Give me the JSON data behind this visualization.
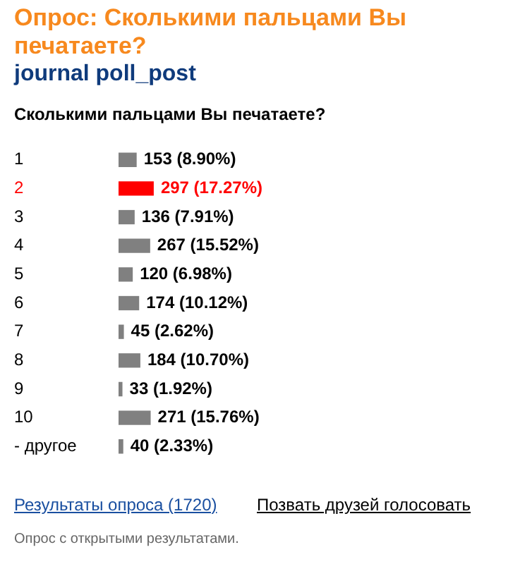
{
  "chart_data": {
    "type": "bar",
    "orientation": "horizontal",
    "title": "Опрос: Сколькими пальцами Вы печатаете?",
    "subtitle": "journal poll_post",
    "categories": [
      "1",
      "2",
      "3",
      "4",
      "5",
      "6",
      "7",
      "8",
      "9",
      "10",
      "- другое"
    ],
    "values": [
      153,
      297,
      136,
      267,
      120,
      174,
      45,
      184,
      33,
      271,
      40
    ],
    "value_labels": [
      "153 (8.90%)",
      "297 (17.27%)",
      "136 (7.91%)",
      "267 (15.52%)",
      "120 (6.98%)",
      "174 (10.12%)",
      "45 (2.62%)",
      "184 (10.70%)",
      "33 (1.92%)",
      "271 (15.76%)",
      "40 (2.33%)"
    ],
    "color": "#808080",
    "colors": [
      "#808080",
      "#ff0000",
      "#808080",
      "#808080",
      "#808080",
      "#808080",
      "#808080",
      "#808080",
      "#808080",
      "#808080",
      "#808080"
    ],
    "annotations": [
      "Сколькими пальцами Вы печатаете?",
      "Результаты опроса (1720)",
      "Позвать друзей голосовать",
      "Опрос с открытыми результатами."
    ],
    "tick_labels": "y",
    "grid": false,
    "legend": false
  }
}
